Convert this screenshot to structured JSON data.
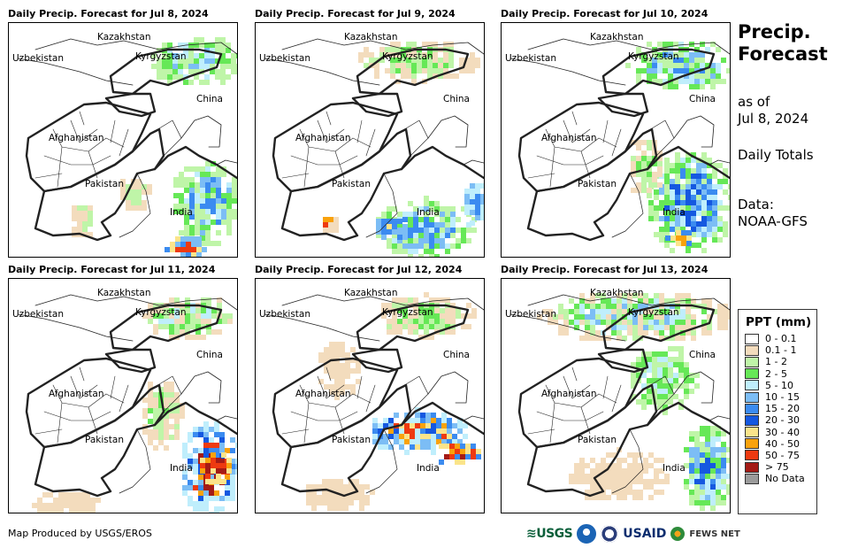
{
  "panels": [
    {
      "title": "Daily Precip. Forecast for Jul 8, 2024"
    },
    {
      "title": "Daily Precip. Forecast for Jul 9, 2024"
    },
    {
      "title": "Daily Precip. Forecast for Jul 10, 2024"
    },
    {
      "title": "Daily Precip. Forecast for Jul 11, 2024"
    },
    {
      "title": "Daily Precip. Forecast for Jul 12, 2024"
    },
    {
      "title": "Daily Precip. Forecast for Jul 13, 2024"
    }
  ],
  "map_labels": {
    "kazakhstan": "Kazakhstan",
    "uzbekistan": "Uzbekistan",
    "kyrgyzstan": "Kyrgyzstan",
    "china": "China",
    "afghanistan": "Afghanistan",
    "pakistan": "Pakistan",
    "india": "India"
  },
  "header": {
    "title_line1": "Precip.",
    "title_line2": "Forecast",
    "as_of_line1": "as of",
    "as_of_line2": "Jul 8, 2024",
    "totals": "Daily Totals",
    "data_line1": "Data:",
    "data_line2": "NOAA-GFS"
  },
  "legend": {
    "title": "PPT (mm)",
    "items": [
      {
        "label": "0 - 0.1",
        "color": "#ffffff"
      },
      {
        "label": "0.1 - 1",
        "color": "#f3dcbd"
      },
      {
        "label": "1 - 2",
        "color": "#bff5a8"
      },
      {
        "label": "2 - 5",
        "color": "#66e857"
      },
      {
        "label": "5 - 10",
        "color": "#bfeefc"
      },
      {
        "label": "10 - 15",
        "color": "#7cbdf5"
      },
      {
        "label": "15 - 20",
        "color": "#3b8bf0"
      },
      {
        "label": "20 - 30",
        "color": "#1558e0"
      },
      {
        "label": "30 - 40",
        "color": "#fbe48a"
      },
      {
        "label": "40 - 50",
        "color": "#f9a20c"
      },
      {
        "label": "50 - 75",
        "color": "#ee3a10"
      },
      {
        "label": "> 75",
        "color": "#a41b16"
      },
      {
        "label": "No Data",
        "color": "#9b9b9b"
      }
    ]
  },
  "footer": {
    "credit": "Map Produced by USGS/EROS",
    "logo_usgs": "≋USGS",
    "logo_usaid": "USAID",
    "logo_fews": "FEWS NET"
  }
}
